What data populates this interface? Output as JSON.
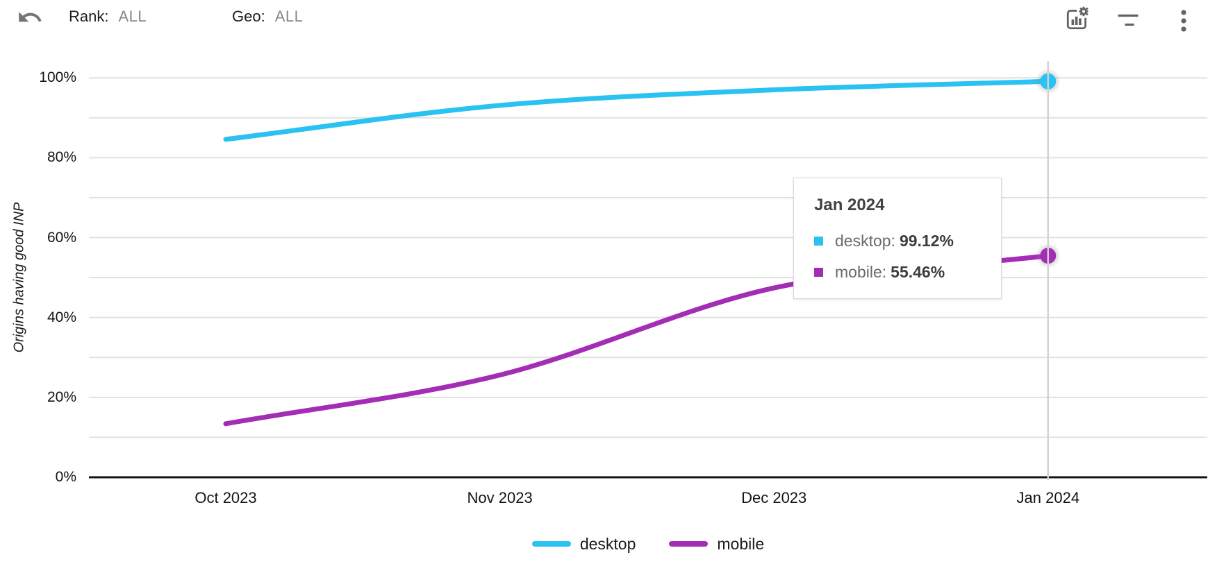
{
  "header": {
    "filters": [
      {
        "label": "Rank:",
        "value": "ALL"
      },
      {
        "label": "Geo:",
        "value": "ALL"
      }
    ],
    "action_icons": [
      "undo",
      "chart-options",
      "filter",
      "more-options"
    ]
  },
  "chart_data": {
    "type": "line",
    "title": "",
    "xlabel": "",
    "ylabel": "Origins having good INP",
    "categories": [
      "Oct 2023",
      "Nov 2023",
      "Dec 2023",
      "Jan 2024"
    ],
    "series": [
      {
        "name": "desktop",
        "color": "#29c2f2",
        "values": [
          84.6,
          93.1,
          97.0,
          99.12
        ]
      },
      {
        "name": "mobile",
        "color": "#a32db4",
        "values": [
          13.4,
          25.6,
          47.4,
          55.46
        ]
      }
    ],
    "ylim": [
      0,
      100
    ],
    "y_ticks": [
      {
        "value": 0,
        "label": "0%"
      },
      {
        "value": 20,
        "label": "20%"
      },
      {
        "value": 40,
        "label": "40%"
      },
      {
        "value": 60,
        "label": "60%"
      },
      {
        "value": 80,
        "label": "80%"
      },
      {
        "value": 100,
        "label": "100%"
      }
    ],
    "grid": true,
    "smooth": true,
    "legend_position": "bottom",
    "highlighted_index": 3
  },
  "tooltip": {
    "title": "Jan 2024",
    "rows": [
      {
        "series": "desktop",
        "value": "99.12%"
      },
      {
        "series": "mobile",
        "value": "55.46%"
      }
    ]
  },
  "colors": {
    "grid": "#e1e1e1",
    "axis": "#141414",
    "crosshair": "#d2d2d2",
    "icon": "#5f6368"
  }
}
